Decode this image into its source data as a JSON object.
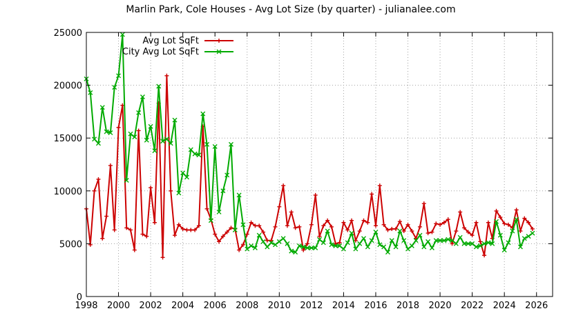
{
  "chart_data": {
    "type": "line",
    "title": "Marlin Park, Cole Houses - Avg Lot Size (by quarter) - julianalee.com",
    "xlabel": "",
    "ylabel": "",
    "xlim": [
      1998,
      2027
    ],
    "ylim": [
      0,
      25000
    ],
    "x_ticks": [
      "1998",
      "2000",
      "2002",
      "2004",
      "2006",
      "2008",
      "2010",
      "2012",
      "2014",
      "2016",
      "2018",
      "2020",
      "2022",
      "2024",
      "2026"
    ],
    "y_ticks": [
      "0",
      "5000",
      "10000",
      "15000",
      "20000",
      "25000"
    ],
    "grid": true,
    "legend_position": "top-left",
    "colors": {
      "avg": "#cc0000",
      "city": "#00aa00"
    },
    "series": [
      {
        "name": "Avg Lot SqFt",
        "points": [
          [
            1998.0,
            8300
          ],
          [
            1998.25,
            4900
          ],
          [
            1998.5,
            10000
          ],
          [
            1998.75,
            11100
          ],
          [
            1999.0,
            5500
          ],
          [
            1999.25,
            7600
          ],
          [
            1999.5,
            12400
          ],
          [
            1999.75,
            6300
          ],
          [
            2000.0,
            16000
          ],
          [
            2000.25,
            18100
          ],
          [
            2000.5,
            6500
          ],
          [
            2000.75,
            6300
          ],
          [
            2001.0,
            4400
          ],
          [
            2001.25,
            15700
          ],
          [
            2001.5,
            5900
          ],
          [
            2001.75,
            5700
          ],
          [
            2002.0,
            10300
          ],
          [
            2002.25,
            7000
          ],
          [
            2002.5,
            18300
          ],
          [
            2002.75,
            3700
          ],
          [
            2003.0,
            20900
          ],
          [
            2003.25,
            10000
          ],
          [
            2003.5,
            5800
          ],
          [
            2003.75,
            6800
          ],
          [
            2004.0,
            6400
          ],
          [
            2004.25,
            6300
          ],
          [
            2004.5,
            6300
          ],
          [
            2004.75,
            6300
          ],
          [
            2005.0,
            6700
          ],
          [
            2005.25,
            16100
          ],
          [
            2005.5,
            8300
          ],
          [
            2005.75,
            7300
          ],
          [
            2006.0,
            5900
          ],
          [
            2006.25,
            5200
          ],
          [
            2006.5,
            5700
          ],
          [
            2006.75,
            6100
          ],
          [
            2007.0,
            6500
          ],
          [
            2007.25,
            6400
          ],
          [
            2007.5,
            4400
          ],
          [
            2007.75,
            4900
          ],
          [
            2008.0,
            5900
          ],
          [
            2008.25,
            7000
          ],
          [
            2008.5,
            6700
          ],
          [
            2008.75,
            6700
          ],
          [
            2009.0,
            6100
          ],
          [
            2009.25,
            5300
          ],
          [
            2009.5,
            5300
          ],
          [
            2009.75,
            6600
          ],
          [
            2010.0,
            8500
          ],
          [
            2010.25,
            10500
          ],
          [
            2010.5,
            6700
          ],
          [
            2010.75,
            8000
          ],
          [
            2011.0,
            6500
          ],
          [
            2011.25,
            6600
          ],
          [
            2011.5,
            4400
          ],
          [
            2011.75,
            5000
          ],
          [
            2012.0,
            6800
          ],
          [
            2012.25,
            9600
          ],
          [
            2012.5,
            5700
          ],
          [
            2012.75,
            6700
          ],
          [
            2013.0,
            7200
          ],
          [
            2013.25,
            6600
          ],
          [
            2013.5,
            5000
          ],
          [
            2013.75,
            5100
          ],
          [
            2014.0,
            7000
          ],
          [
            2014.25,
            6300
          ],
          [
            2014.5,
            7200
          ],
          [
            2014.75,
            5300
          ],
          [
            2015.0,
            6200
          ],
          [
            2015.25,
            7200
          ],
          [
            2015.5,
            7000
          ],
          [
            2015.75,
            9700
          ],
          [
            2016.0,
            6700
          ],
          [
            2016.25,
            10500
          ],
          [
            2016.5,
            6800
          ],
          [
            2016.75,
            6300
          ],
          [
            2017.0,
            6400
          ],
          [
            2017.25,
            6400
          ],
          [
            2017.5,
            7100
          ],
          [
            2017.75,
            6200
          ],
          [
            2018.0,
            6800
          ],
          [
            2018.25,
            6200
          ],
          [
            2018.5,
            5500
          ],
          [
            2018.75,
            6600
          ],
          [
            2019.0,
            8800
          ],
          [
            2019.25,
            6000
          ],
          [
            2019.5,
            6100
          ],
          [
            2019.75,
            6900
          ],
          [
            2020.0,
            6800
          ],
          [
            2020.25,
            7000
          ],
          [
            2020.5,
            7300
          ],
          [
            2020.75,
            5000
          ],
          [
            2021.0,
            6200
          ],
          [
            2021.25,
            8000
          ],
          [
            2021.5,
            6500
          ],
          [
            2021.75,
            6100
          ],
          [
            2022.0,
            5800
          ],
          [
            2022.25,
            7000
          ],
          [
            2022.5,
            5200
          ],
          [
            2022.75,
            3900
          ],
          [
            2023.0,
            7000
          ],
          [
            2023.25,
            5500
          ],
          [
            2023.5,
            8100
          ],
          [
            2023.75,
            7500
          ],
          [
            2024.0,
            6900
          ],
          [
            2024.25,
            6800
          ],
          [
            2024.5,
            6500
          ],
          [
            2024.75,
            8200
          ],
          [
            2025.0,
            6200
          ],
          [
            2025.25,
            7400
          ],
          [
            2025.5,
            7000
          ],
          [
            2025.75,
            6400
          ]
        ]
      },
      {
        "name": "City Avg Lot SqFt",
        "points": [
          [
            1998.0,
            20600
          ],
          [
            1998.25,
            19300
          ],
          [
            1998.5,
            14900
          ],
          [
            1998.75,
            14500
          ],
          [
            1999.0,
            17900
          ],
          [
            1999.25,
            15600
          ],
          [
            1999.5,
            15500
          ],
          [
            1999.75,
            19800
          ],
          [
            2000.0,
            20900
          ],
          [
            2000.25,
            24800
          ],
          [
            2000.5,
            11000
          ],
          [
            2000.75,
            15400
          ],
          [
            2001.0,
            15100
          ],
          [
            2001.25,
            17400
          ],
          [
            2001.5,
            18900
          ],
          [
            2001.75,
            14800
          ],
          [
            2002.0,
            16100
          ],
          [
            2002.25,
            13800
          ],
          [
            2002.5,
            19900
          ],
          [
            2002.75,
            14700
          ],
          [
            2003.0,
            14900
          ],
          [
            2003.25,
            14500
          ],
          [
            2003.5,
            16700
          ],
          [
            2003.75,
            9800
          ],
          [
            2004.0,
            11700
          ],
          [
            2004.25,
            11300
          ],
          [
            2004.5,
            13900
          ],
          [
            2004.75,
            13500
          ],
          [
            2005.0,
            13400
          ],
          [
            2005.25,
            17300
          ],
          [
            2005.5,
            14400
          ],
          [
            2005.75,
            7200
          ],
          [
            2006.0,
            14200
          ],
          [
            2006.25,
            8000
          ],
          [
            2006.5,
            10000
          ],
          [
            2006.75,
            11500
          ],
          [
            2007.0,
            14400
          ],
          [
            2007.25,
            6300
          ],
          [
            2007.5,
            9600
          ],
          [
            2007.75,
            6800
          ],
          [
            2008.0,
            4500
          ],
          [
            2008.25,
            4800
          ],
          [
            2008.5,
            4600
          ],
          [
            2008.75,
            5800
          ],
          [
            2009.0,
            5200
          ],
          [
            2009.25,
            4700
          ],
          [
            2009.5,
            5100
          ],
          [
            2009.75,
            4900
          ],
          [
            2010.0,
            5200
          ],
          [
            2010.25,
            5500
          ],
          [
            2010.5,
            5000
          ],
          [
            2010.75,
            4300
          ],
          [
            2011.0,
            4200
          ],
          [
            2011.25,
            4800
          ],
          [
            2011.5,
            4700
          ],
          [
            2011.75,
            4600
          ],
          [
            2012.0,
            4600
          ],
          [
            2012.25,
            4600
          ],
          [
            2012.5,
            5400
          ],
          [
            2012.75,
            5100
          ],
          [
            2013.0,
            6200
          ],
          [
            2013.25,
            4900
          ],
          [
            2013.5,
            4800
          ],
          [
            2013.75,
            4800
          ],
          [
            2014.0,
            4500
          ],
          [
            2014.25,
            5100
          ],
          [
            2014.5,
            6000
          ],
          [
            2014.75,
            4500
          ],
          [
            2015.0,
            5000
          ],
          [
            2015.25,
            5500
          ],
          [
            2015.5,
            4700
          ],
          [
            2015.75,
            5300
          ],
          [
            2016.0,
            6100
          ],
          [
            2016.25,
            4900
          ],
          [
            2016.5,
            4700
          ],
          [
            2016.75,
            4200
          ],
          [
            2017.0,
            5300
          ],
          [
            2017.25,
            4700
          ],
          [
            2017.5,
            6200
          ],
          [
            2017.75,
            5300
          ],
          [
            2018.0,
            4500
          ],
          [
            2018.25,
            4800
          ],
          [
            2018.5,
            5300
          ],
          [
            2018.75,
            5800
          ],
          [
            2019.0,
            4700
          ],
          [
            2019.25,
            5200
          ],
          [
            2019.5,
            4600
          ],
          [
            2019.75,
            5300
          ],
          [
            2020.0,
            5300
          ],
          [
            2020.25,
            5300
          ],
          [
            2020.5,
            5400
          ],
          [
            2020.75,
            5300
          ],
          [
            2021.0,
            5000
          ],
          [
            2021.25,
            5600
          ],
          [
            2021.5,
            5000
          ],
          [
            2021.75,
            5000
          ],
          [
            2022.0,
            5000
          ],
          [
            2022.25,
            4700
          ],
          [
            2022.5,
            4800
          ],
          [
            2022.75,
            5000
          ],
          [
            2023.0,
            5100
          ],
          [
            2023.25,
            5000
          ],
          [
            2023.5,
            7100
          ],
          [
            2023.75,
            5800
          ],
          [
            2024.0,
            4400
          ],
          [
            2024.25,
            5100
          ],
          [
            2024.5,
            6200
          ],
          [
            2024.75,
            7300
          ],
          [
            2025.0,
            4700
          ],
          [
            2025.25,
            5500
          ],
          [
            2025.5,
            5700
          ],
          [
            2025.75,
            6000
          ]
        ]
      }
    ]
  }
}
